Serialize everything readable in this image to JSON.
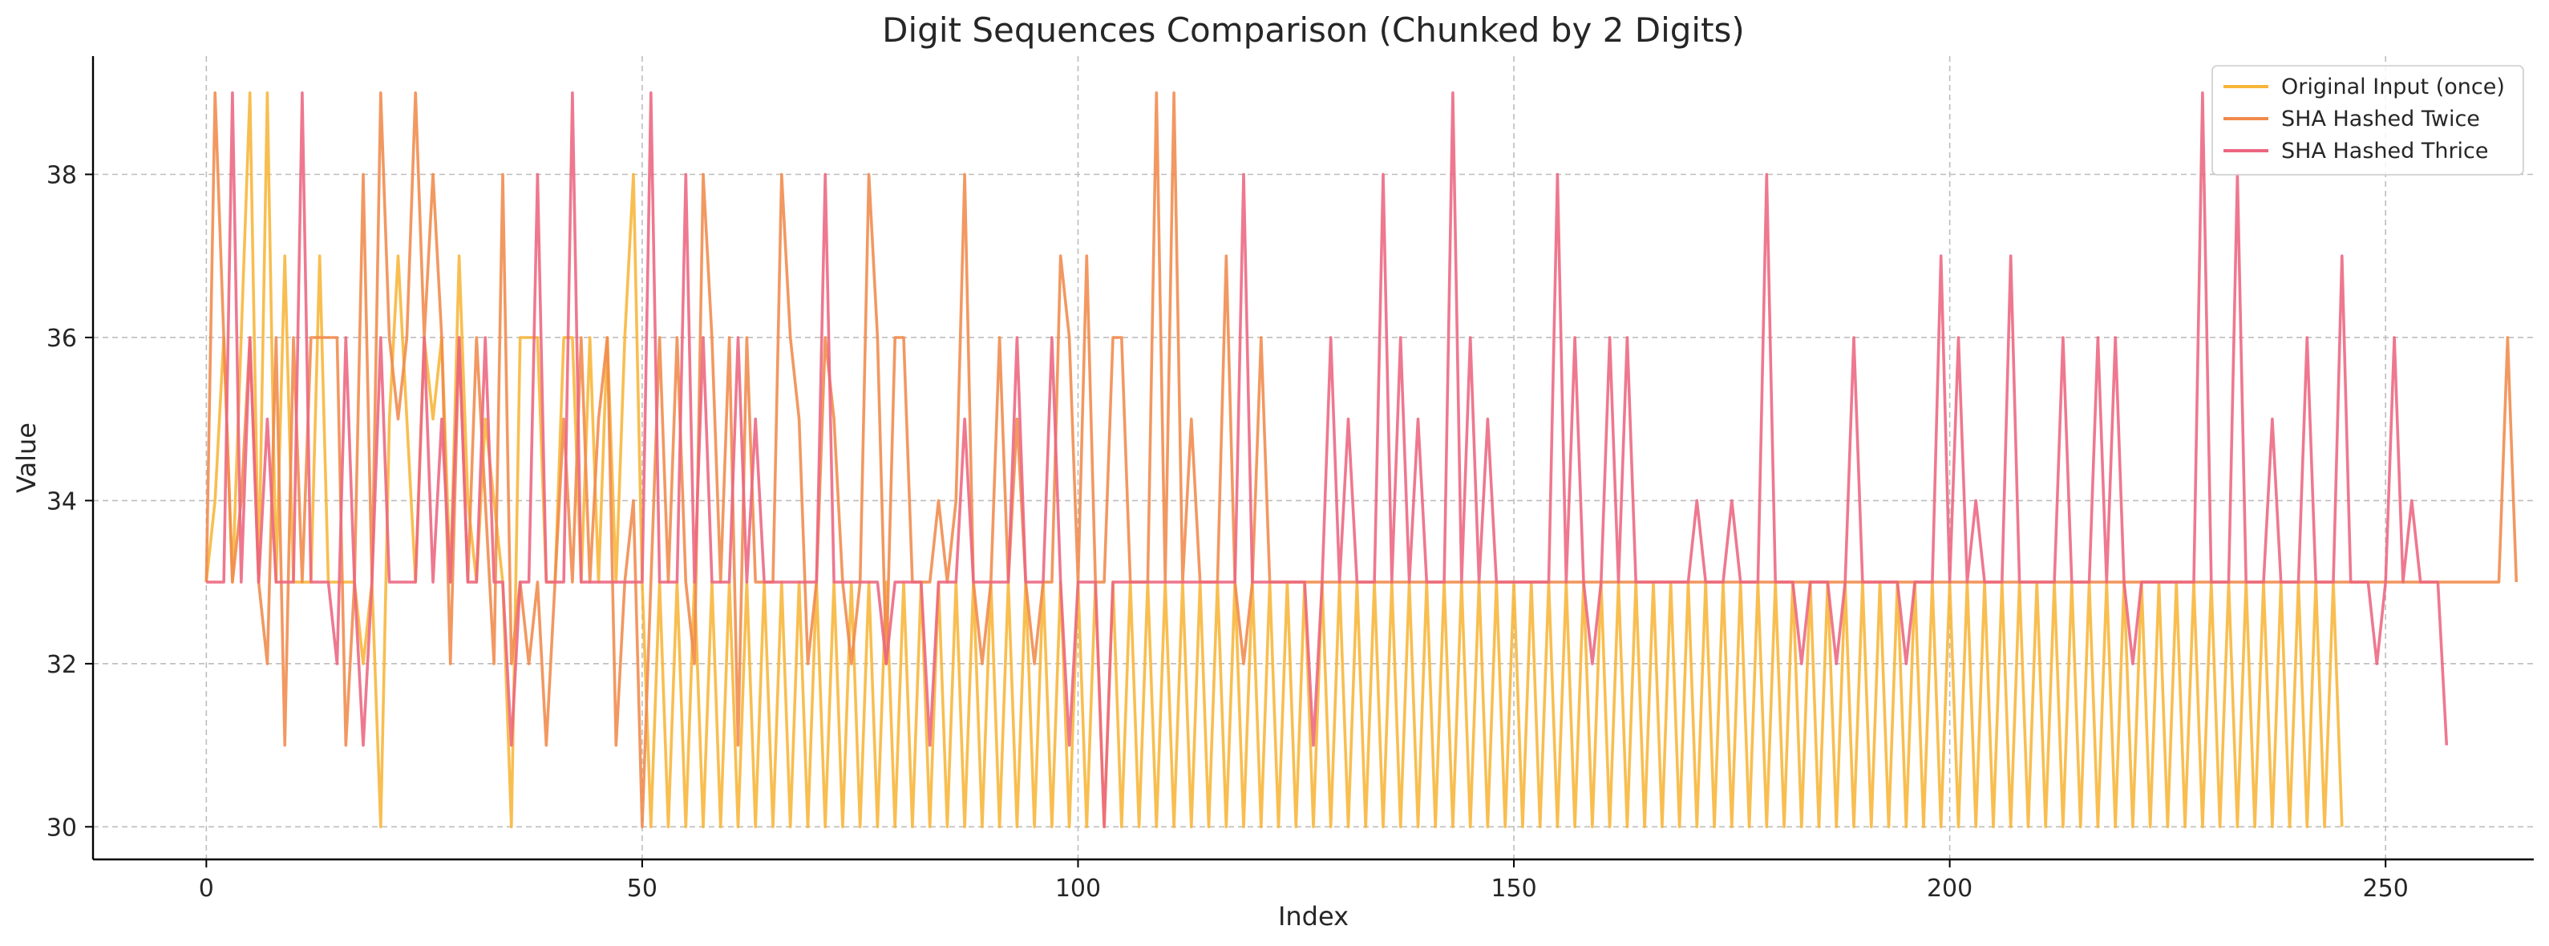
{
  "chart_data": {
    "type": "line",
    "title": "Digit Sequences Comparison (Chunked by 2 Digits)",
    "xlabel": "Index",
    "ylabel": "Value",
    "xlim": [
      -13,
      267
    ],
    "ylim": [
      29.6,
      39.45
    ],
    "xticks": [
      0,
      50,
      100,
      150,
      200,
      250
    ],
    "yticks": [
      30,
      32,
      34,
      36,
      38
    ],
    "grid": true,
    "legend_position": "top-right",
    "series": [
      {
        "name": "Original Input (once)",
        "color": "#F7B538",
        "values": [
          33,
          34,
          36,
          33,
          36,
          39,
          33,
          39,
          33,
          37,
          33,
          33,
          33,
          37,
          33,
          33,
          33,
          33,
          32,
          33,
          30,
          35,
          37,
          35,
          33,
          36,
          35,
          36,
          33,
          37,
          34,
          33,
          35,
          34,
          33,
          30,
          36,
          36,
          36,
          33,
          33,
          36,
          36,
          33,
          36,
          33,
          36,
          33,
          36,
          38,
          33,
          30,
          33,
          30,
          33,
          30,
          33,
          30,
          33,
          30,
          33,
          30,
          33,
          30,
          33,
          30,
          33,
          30,
          33,
          30,
          33,
          30,
          33,
          30,
          33,
          30,
          33,
          30,
          33,
          30,
          33,
          30,
          33,
          30,
          33,
          30,
          33,
          30,
          33,
          30,
          33,
          30,
          33,
          30,
          33,
          30,
          33,
          30,
          33,
          30,
          33,
          30,
          33,
          30,
          33,
          30,
          33,
          30,
          33,
          30,
          33,
          30,
          33,
          30,
          33,
          30,
          33,
          30,
          33,
          30,
          33,
          30,
          33,
          30,
          33,
          30,
          33,
          30,
          33,
          30,
          33,
          30,
          33,
          30,
          33,
          30,
          33,
          30,
          33,
          30,
          33,
          30,
          33,
          30,
          33,
          30,
          33,
          30,
          33,
          30,
          33,
          30,
          33,
          30,
          33,
          30,
          33,
          30,
          33,
          30,
          33,
          30,
          33,
          30,
          33,
          30,
          33,
          30,
          33,
          30,
          33,
          30,
          33,
          30,
          33,
          30,
          33,
          30,
          33,
          30,
          33,
          30,
          33,
          30,
          33,
          30,
          33,
          30,
          33,
          30,
          33,
          30,
          33,
          30,
          33,
          30,
          33,
          30,
          33,
          30,
          33,
          30,
          33,
          30,
          33,
          30,
          33,
          30,
          33,
          30,
          33,
          30,
          33,
          30,
          33,
          30,
          33,
          30,
          33,
          30,
          33,
          30,
          33,
          30,
          33,
          30,
          33,
          30,
          33,
          30,
          33,
          30,
          33,
          30,
          33,
          30,
          33,
          30,
          33,
          30,
          33,
          30,
          33,
          30,
          33,
          30
        ]
      },
      {
        "name": "SHA Hashed Twice",
        "color": "#F08A4B",
        "values": [
          33,
          39,
          36,
          33,
          34,
          36,
          33,
          32,
          36,
          31,
          36,
          33,
          36,
          36,
          36,
          36,
          31,
          33,
          38,
          33,
          39,
          36,
          35,
          36,
          39,
          36,
          38,
          36,
          32,
          36,
          33,
          36,
          34,
          32,
          38,
          32,
          33,
          32,
          33,
          31,
          33,
          35,
          33,
          36,
          33,
          35,
          36,
          31,
          33,
          34,
          30,
          33,
          36,
          33,
          36,
          33,
          32,
          38,
          36,
          33,
          36,
          31,
          36,
          33,
          33,
          33,
          38,
          36,
          35,
          32,
          33,
          36,
          35,
          33,
          32,
          33,
          38,
          36,
          32,
          36,
          36,
          33,
          33,
          33,
          34,
          33,
          34,
          38,
          33,
          32,
          33,
          36,
          33,
          35,
          33,
          32,
          33,
          33,
          37,
          36,
          33,
          37,
          33,
          33,
          36,
          36,
          33,
          33,
          33,
          39,
          33,
          39,
          33,
          35,
          33,
          33,
          33,
          37,
          33,
          32,
          33,
          36,
          33,
          33,
          33,
          33,
          33,
          33,
          33,
          33,
          33,
          33,
          33,
          33,
          33,
          33,
          33,
          33,
          33,
          33,
          33,
          33,
          33,
          33,
          33,
          33,
          33,
          33,
          33,
          33,
          33,
          33,
          33,
          33,
          33,
          33,
          33,
          33,
          33,
          33,
          33,
          33,
          33,
          33,
          33,
          33,
          33,
          33,
          33,
          33,
          33,
          33,
          33,
          33,
          33,
          33,
          33,
          33,
          33,
          33,
          33,
          33,
          33,
          33,
          33,
          33,
          33,
          33,
          33,
          33,
          33,
          33,
          33,
          33,
          33,
          33,
          33,
          33,
          33,
          33,
          33,
          33,
          33,
          33,
          33,
          33,
          33,
          33,
          33,
          33,
          33,
          33,
          33,
          33,
          33,
          33,
          33,
          33,
          33,
          33,
          33,
          33,
          33,
          33,
          33,
          33,
          33,
          33,
          33,
          33,
          33,
          33,
          33,
          33,
          33,
          33,
          33,
          33,
          33,
          33,
          33,
          33,
          33,
          33,
          33,
          33,
          33,
          33,
          33,
          33,
          33,
          33,
          33,
          33,
          33,
          33,
          33,
          33,
          33,
          33,
          33,
          33,
          33,
          33,
          36,
          33
        ]
      },
      {
        "name": "SHA Hashed Thrice",
        "color": "#EC6580",
        "values": [
          33,
          33,
          33,
          39,
          33,
          36,
          33,
          35,
          33,
          33,
          33,
          39,
          33,
          33,
          33,
          32,
          36,
          33,
          31,
          33,
          36,
          33,
          33,
          33,
          33,
          36,
          33,
          35,
          33,
          36,
          33,
          33,
          36,
          33,
          33,
          31,
          33,
          33,
          38,
          33,
          33,
          33,
          39,
          33,
          33,
          33,
          33,
          33,
          33,
          33,
          33,
          39,
          33,
          33,
          33,
          38,
          33,
          36,
          33,
          33,
          33,
          36,
          33,
          35,
          33,
          33,
          33,
          33,
          33,
          33,
          33,
          38,
          33,
          33,
          33,
          33,
          33,
          33,
          32,
          33,
          33,
          33,
          33,
          31,
          33,
          33,
          33,
          35,
          33,
          33,
          33,
          33,
          33,
          36,
          33,
          33,
          33,
          36,
          33,
          31,
          33,
          33,
          33,
          30,
          33,
          33,
          33,
          33,
          33,
          33,
          33,
          33,
          33,
          33,
          33,
          33,
          33,
          33,
          33,
          38,
          33,
          33,
          33,
          33,
          33,
          33,
          33,
          31,
          33,
          36,
          33,
          35,
          33,
          33,
          33,
          38,
          33,
          36,
          33,
          35,
          33,
          33,
          33,
          39,
          33,
          36,
          33,
          35,
          33,
          33,
          33,
          33,
          33,
          33,
          33,
          38,
          33,
          36,
          33,
          32,
          33,
          36,
          33,
          36,
          33,
          33,
          33,
          33,
          33,
          33,
          33,
          34,
          33,
          33,
          33,
          34,
          33,
          33,
          33,
          38,
          33,
          33,
          33,
          32,
          33,
          33,
          33,
          32,
          33,
          36,
          33,
          33,
          33,
          33,
          33,
          32,
          33,
          33,
          33,
          37,
          33,
          36,
          33,
          34,
          33,
          33,
          33,
          37,
          33,
          33,
          33,
          33,
          33,
          36,
          33,
          33,
          33,
          36,
          33,
          36,
          33,
          32,
          33,
          33,
          33,
          33,
          33,
          33,
          33,
          39,
          33,
          33,
          33,
          38,
          33,
          33,
          33,
          35,
          33,
          33,
          33,
          36,
          33,
          33,
          33,
          37,
          33,
          33,
          33,
          32,
          33,
          36,
          33,
          34,
          33,
          33,
          33,
          31
        ]
      }
    ]
  }
}
